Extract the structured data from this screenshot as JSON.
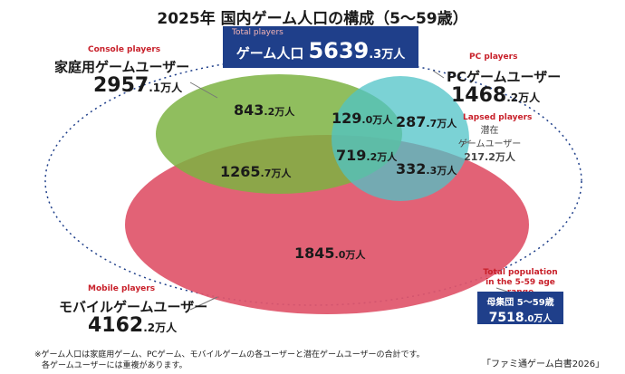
{
  "title": "2025年 国内ゲーム人口の構成（5〜59歳）",
  "total": {
    "en": "Total players",
    "label": "ゲーム人口",
    "value": "5639",
    "decimal": ".3万人"
  },
  "console": {
    "en": "Console players",
    "label": "家庭用ゲームユーザー",
    "value": "2957",
    "decimal": ".1万人",
    "color": "#7cb342"
  },
  "pc": {
    "en": "PC players",
    "label": "PCゲームユーザー",
    "value": "1468",
    "decimal": ".2万人",
    "color": "#4fc3c7"
  },
  "mobile": {
    "en": "Mobile players",
    "label": "モバイルゲームユーザー",
    "value": "4162",
    "decimal": ".2万人",
    "color": "#e0566c"
  },
  "lapsed": {
    "en": "Lapsed players",
    "line1": "潜在",
    "line2": "ゲームユーザー",
    "value": "217.2万人"
  },
  "segments": {
    "console_only": {
      "value": "843",
      "decimal": ".2万人"
    },
    "console_pc": {
      "value": "129",
      "decimal": ".0万人"
    },
    "pc_only": {
      "value": "287",
      "decimal": ".7万人"
    },
    "console_mobile": {
      "value": "1265",
      "decimal": ".7万人"
    },
    "all_three": {
      "value": "719",
      "decimal": ".2万人"
    },
    "pc_mobile": {
      "value": "332",
      "decimal": ".3万人"
    },
    "mobile_only": {
      "value": "1845",
      "decimal": ".0万人"
    }
  },
  "population": {
    "en_line1": "Total population",
    "en_line2": "in the 5-59 age range",
    "label": "母集団 5〜59歳",
    "value": "7518",
    "decimal": ".0万人"
  },
  "footnote": {
    "line1": "※ゲーム人口は家庭用ゲーム、PCゲーム、モバイルゲームの各ユーザーと潜在ゲームユーザーの合計です。",
    "line2": "各ゲームユーザーには重複があります。"
  },
  "source": "「ファミ通ゲーム白書2026」",
  "colors": {
    "accent_red": "#c8202a",
    "box_blue": "#1f3f8a",
    "outline": "#1f3f8a"
  }
}
